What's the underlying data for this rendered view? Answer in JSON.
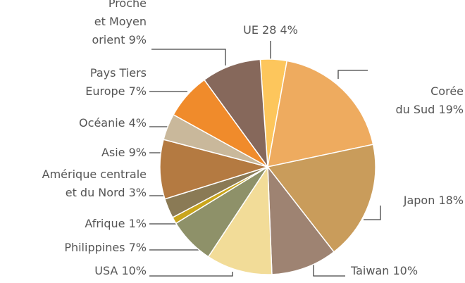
{
  "chart_data": {
    "type": "pie",
    "categories": [
      "UE 28",
      "Corée\ndu Sud",
      "Japon",
      "Taiwan",
      "USA",
      "Philippines",
      "Afrique",
      "Amérique centrale\net du Nord",
      "Asie",
      "Océanie",
      "Pays Tiers\nEurope",
      "Proche\net Moyen\norient"
    ],
    "values": [
      4,
      19,
      18,
      10,
      10,
      7,
      1,
      3,
      9,
      4,
      7,
      9
    ],
    "value_labels": [
      "4%",
      "19%",
      "18%",
      "10%",
      "10%",
      "7%",
      "1%",
      "3%",
      "9%",
      "4%",
      "7%",
      "9%"
    ],
    "colors": [
      "#fdc65c",
      "#eeab5f",
      "#c99c5b",
      "#9e8372",
      "#f2dc98",
      "#8e9169",
      "#c9a51c",
      "#8a7a55",
      "#b47a41",
      "#c9b89b",
      "#f08b2b",
      "#86685b"
    ]
  }
}
